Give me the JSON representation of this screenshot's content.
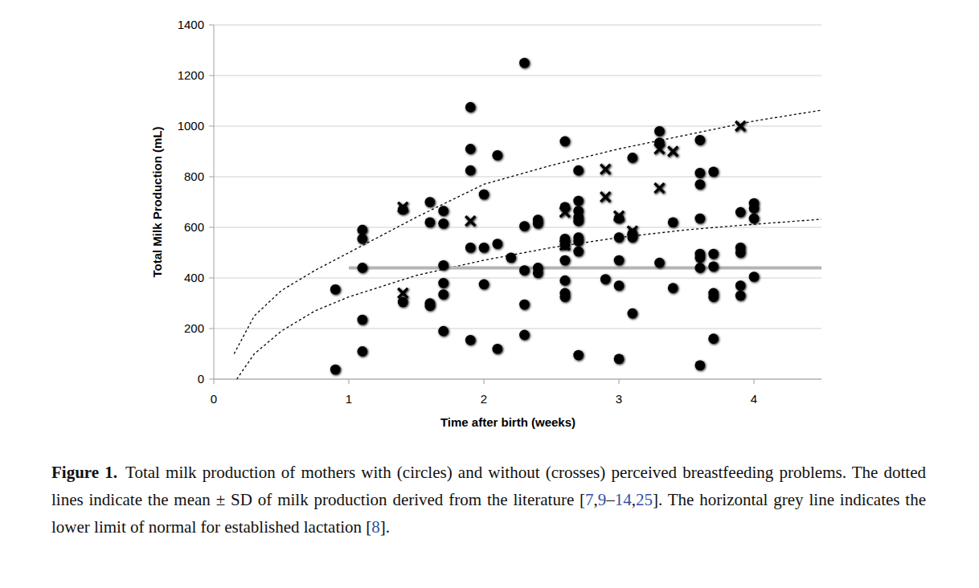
{
  "chart_data": {
    "type": "scatter",
    "x_label": "Time after birth (weeks)",
    "y_label": "Total Milk Production (mL)",
    "xlim": [
      0,
      4.5
    ],
    "xticks": [
      0,
      1,
      2,
      3,
      4
    ],
    "ylim": [
      0,
      1400
    ],
    "yticks": [
      0,
      200,
      400,
      600,
      800,
      1000,
      1200,
      1400
    ],
    "grid": true,
    "series": [
      {
        "type": "scatter",
        "marker": "circle",
        "color": "#000000",
        "x": [
          0.9,
          0.9,
          1.1,
          1.1,
          1.1,
          1.1,
          1.1,
          1.4,
          1.4,
          1.6,
          1.6,
          1.6,
          1.6,
          1.7,
          1.7,
          1.7,
          1.7,
          1.7,
          1.7,
          1.9,
          1.9,
          1.9,
          1.9,
          1.9,
          2.0,
          2.0,
          2.0,
          2.1,
          2.1,
          2.1,
          2.2,
          2.3,
          2.3,
          2.3,
          2.3,
          2.3,
          2.4,
          2.4,
          2.4,
          2.4,
          2.6,
          2.6,
          2.6,
          2.6,
          2.6,
          2.6,
          2.6,
          2.6,
          2.7,
          2.7,
          2.7,
          2.7,
          2.7,
          2.7,
          2.7,
          2.7,
          2.7,
          2.9,
          3.0,
          3.0,
          3.0,
          3.0,
          3.0,
          3.1,
          3.1,
          3.1,
          3.1,
          3.3,
          3.3,
          3.3,
          3.4,
          3.4,
          3.6,
          3.6,
          3.6,
          3.6,
          3.6,
          3.6,
          3.6,
          3.6,
          3.7,
          3.7,
          3.7,
          3.7,
          3.7,
          3.7,
          3.9,
          3.9,
          3.9,
          3.9,
          3.9,
          4.0,
          4.0,
          4.0,
          4.0
        ],
        "values": [
          355,
          38,
          590,
          555,
          440,
          235,
          110,
          670,
          305,
          700,
          620,
          300,
          290,
          665,
          615,
          450,
          380,
          335,
          190,
          1075,
          910,
          825,
          520,
          155,
          730,
          520,
          375,
          885,
          535,
          120,
          480,
          1250,
          605,
          430,
          295,
          175,
          630,
          615,
          440,
          420,
          940,
          680,
          555,
          530,
          470,
          390,
          340,
          325,
          825,
          705,
          665,
          640,
          625,
          560,
          545,
          505,
          95,
          395,
          635,
          560,
          470,
          370,
          80,
          875,
          575,
          560,
          260,
          980,
          935,
          460,
          620,
          360,
          945,
          815,
          770,
          635,
          495,
          480,
          440,
          55,
          820,
          495,
          445,
          340,
          325,
          160,
          660,
          520,
          500,
          370,
          330,
          695,
          675,
          635,
          405
        ]
      },
      {
        "type": "scatter",
        "marker": "cross",
        "color": "#000000",
        "x": [
          1.4,
          1.4,
          1.9,
          2.6,
          2.6,
          2.9,
          2.9,
          3.0,
          3.1,
          3.3,
          3.3,
          3.4,
          3.9
        ],
        "values": [
          680,
          340,
          625,
          660,
          530,
          830,
          720,
          645,
          585,
          910,
          755,
          900,
          1000
        ]
      },
      {
        "type": "line",
        "line_style": "dotted",
        "color": "#000000",
        "x": [
          0.15,
          0.3,
          0.5,
          0.75,
          1,
          1.5,
          2,
          2.5,
          3,
          3.5,
          4,
          4.5
        ],
        "values": [
          100,
          250,
          350,
          430,
          500,
          640,
          770,
          845,
          910,
          965,
          1020,
          1063
        ]
      },
      {
        "type": "line",
        "line_style": "dotted",
        "color": "#000000",
        "x": [
          0.17,
          0.3,
          0.5,
          0.75,
          1,
          1.5,
          2,
          2.5,
          3,
          3.5,
          4,
          4.5
        ],
        "values": [
          0,
          100,
          190,
          270,
          325,
          410,
          470,
          520,
          560,
          590,
          612,
          632
        ]
      },
      {
        "type": "line",
        "line_style": "solid",
        "color": "#b4b4b4",
        "x": [
          1,
          4.5
        ],
        "values": [
          440,
          440
        ]
      }
    ]
  },
  "caption": {
    "label": "Figure 1.",
    "parts": [
      "Total milk production of mothers with (circles) and without (crosses) perceived breastfeeding problems. The dotted lines indicate the mean ± SD of milk production derived from the literature [",
      "7",
      ",",
      "9",
      "–",
      "14",
      ",",
      "25",
      "]. The horizontal grey line indicates the lower limit of normal for established lactation [",
      "8",
      "]."
    ]
  }
}
